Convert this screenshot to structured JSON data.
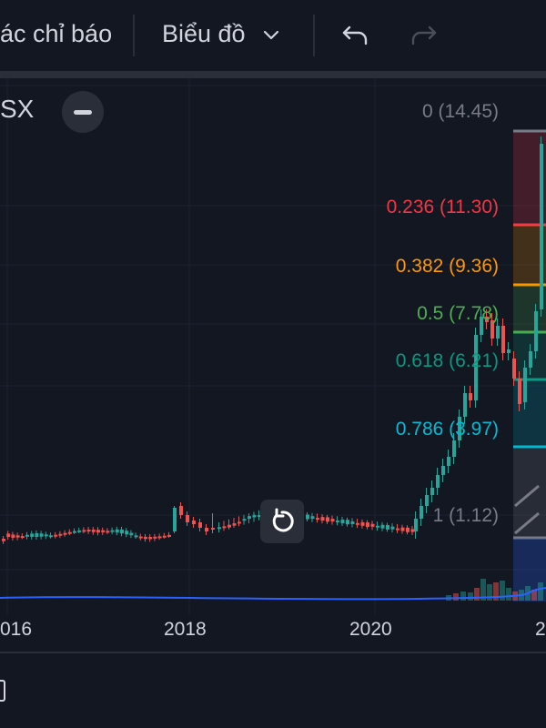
{
  "toolbar": {
    "indicators_label": "ác chỉ báo",
    "chart_type_label": "Biểu đồ",
    "chevron_icon": "chevron-down-icon",
    "undo_icon": "undo-icon",
    "redo_icon": "redo-icon"
  },
  "legend": {
    "symbol": "SX"
  },
  "fib_levels": [
    {
      "text": "0 (14.45)",
      "color": "#787b86"
    },
    {
      "text": "0.236 (11.30)",
      "color": "#f23645"
    },
    {
      "text": "0.382 (9.36)",
      "color": "#ff9800"
    },
    {
      "text": "0.5 (7.78)",
      "color": "#4caf50"
    },
    {
      "text": "0.618 (6.21)",
      "color": "#089981"
    },
    {
      "text": "0.786 (3.97)",
      "color": "#00bcd4"
    },
    {
      "text": "1 (1.12)",
      "color": "#787b86"
    }
  ],
  "xaxis": {
    "labels": [
      "016",
      "2018",
      "2020",
      "2"
    ]
  },
  "colors": {
    "up": "#26a69a",
    "down": "#ef5350",
    "background": "#131722",
    "grid": "#1f2330",
    "volume_line": "#2962ff"
  }
}
